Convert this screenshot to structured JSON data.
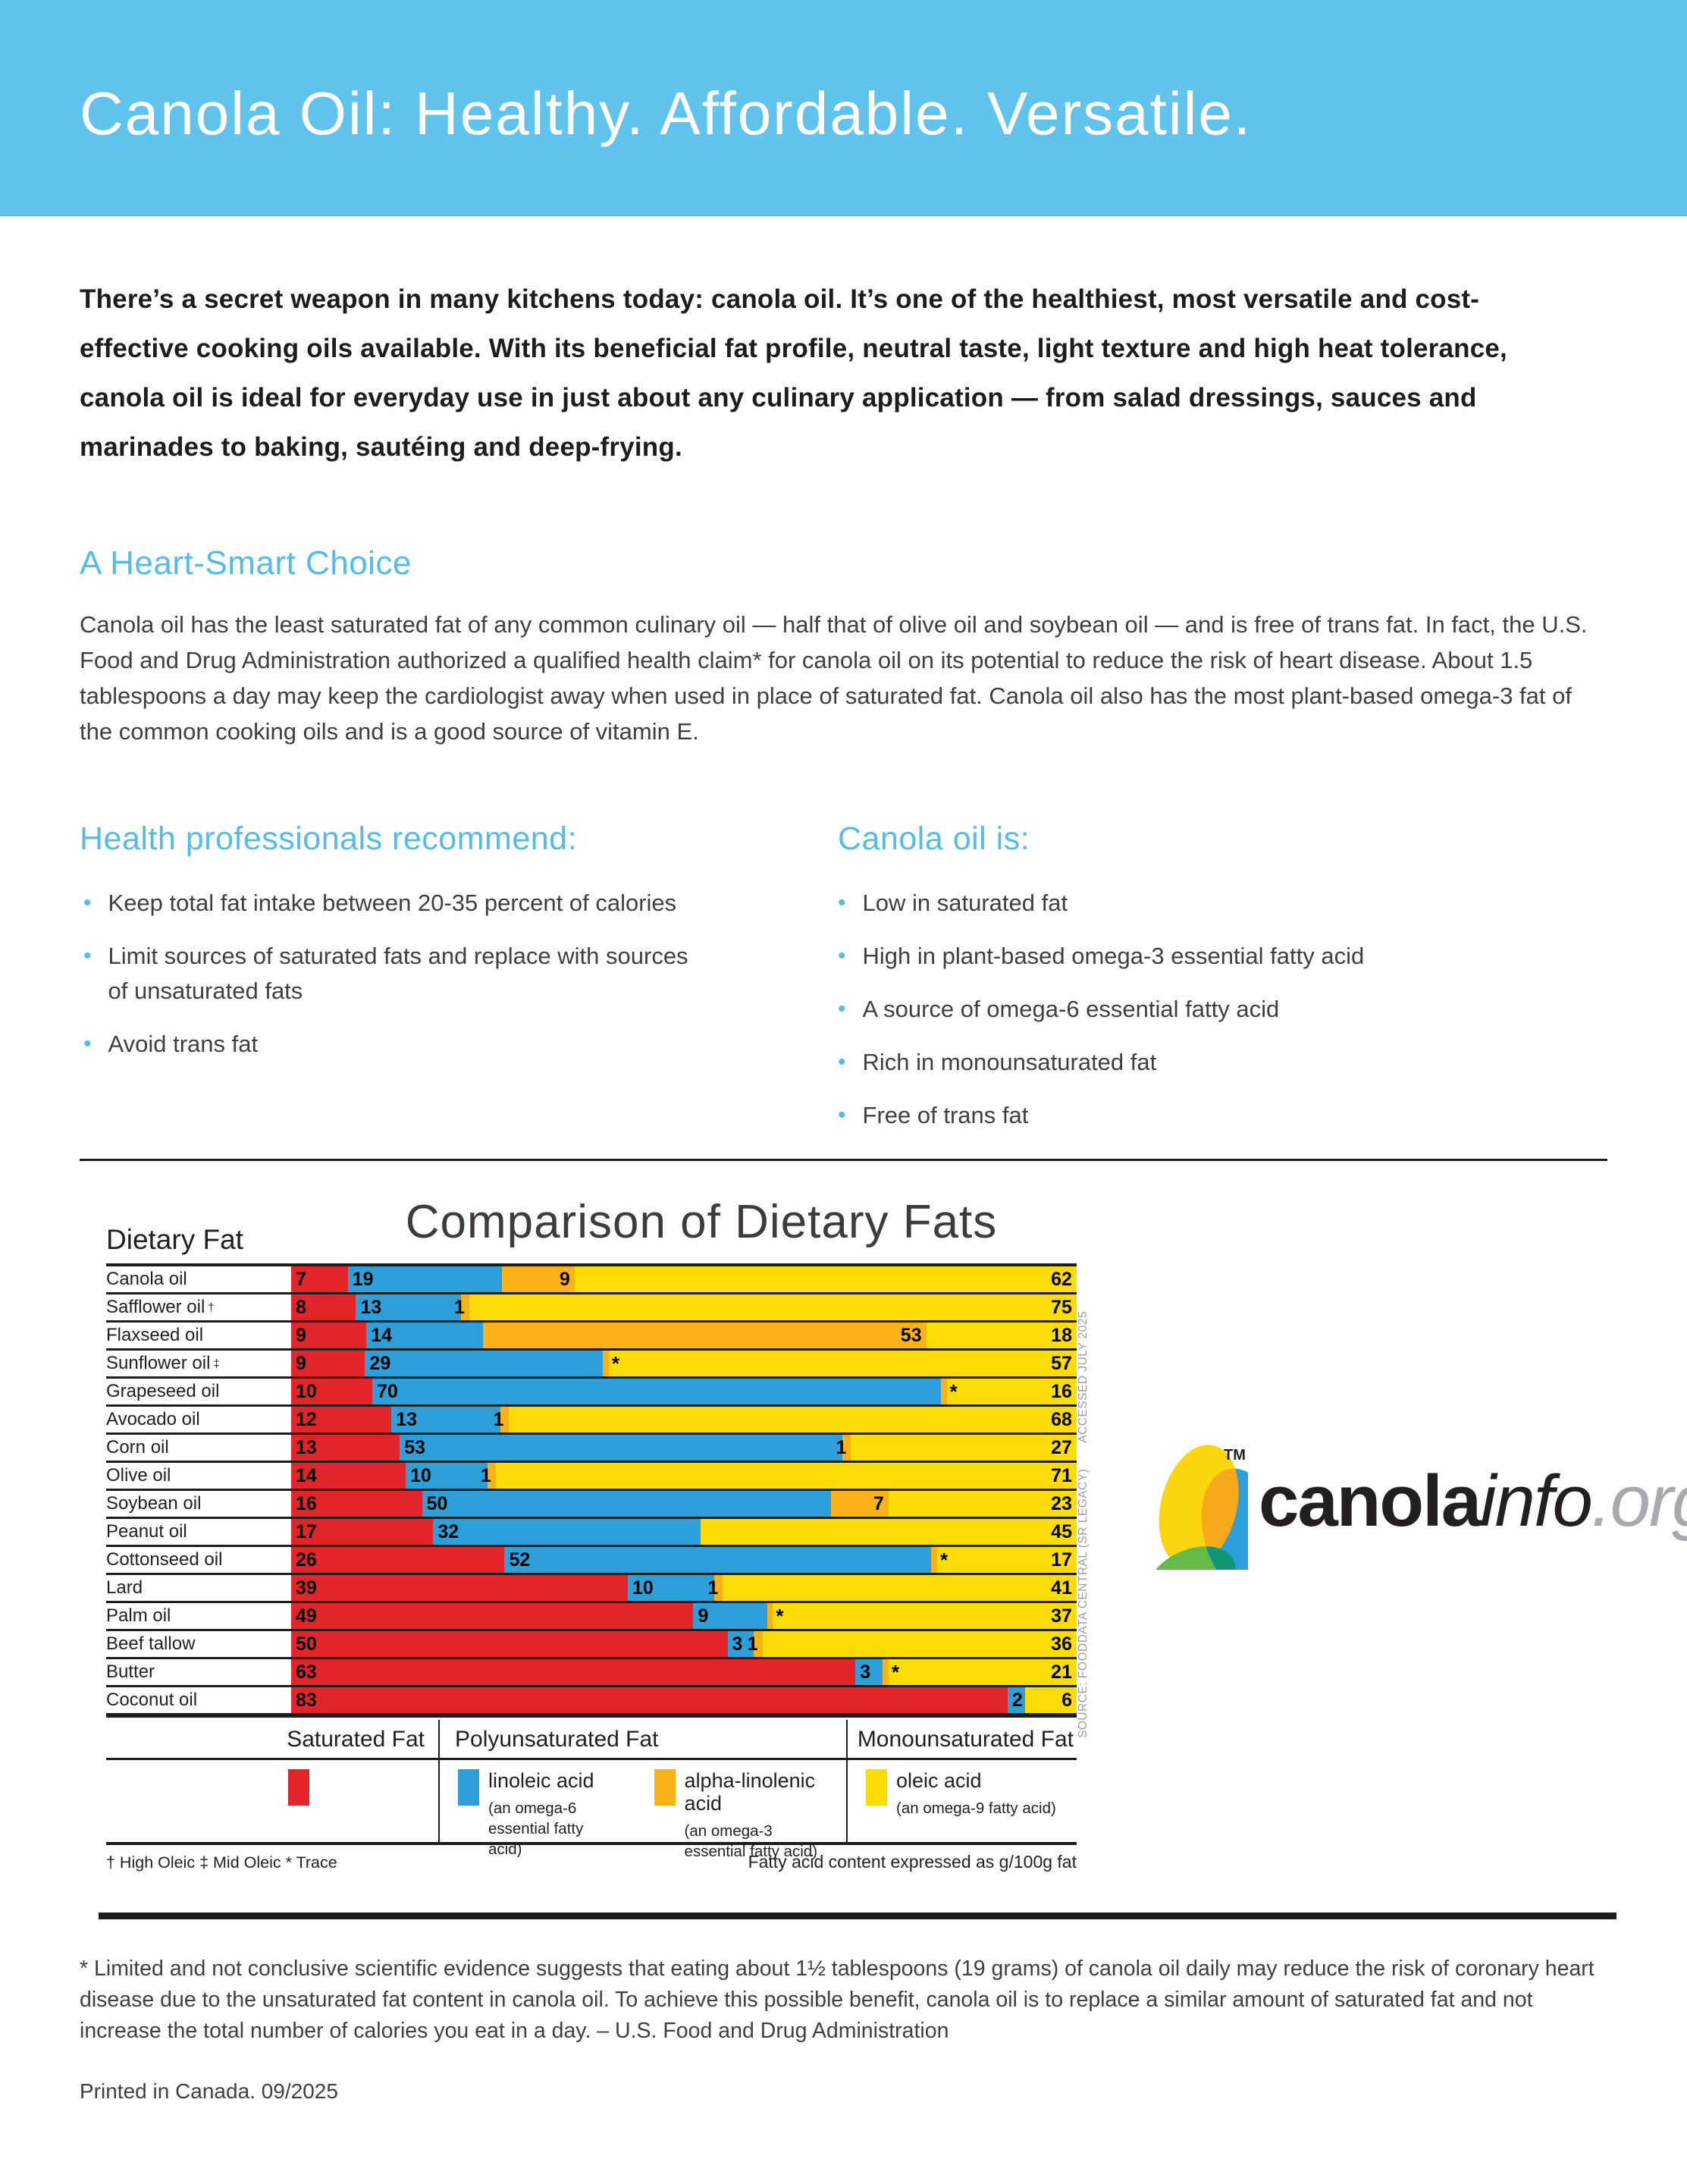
{
  "banner": {
    "title": "Canola Oil: Healthy. Affordable. Versatile.",
    "background": "#5fc3ec"
  },
  "intro": "There’s a secret weapon in many kitchens today: canola oil. It’s one of the healthiest, most versatile and cost-effective cooking oils available. With its beneficial fat profile, neutral taste, light texture and high heat tolerance, canola oil is ideal for everyday use in just about any culinary application — from salad dressings, sauces and marinades to baking, sautéing and deep-frying.",
  "heart_smart": {
    "heading": "A Heart-Smart Choice",
    "body": "Canola oil has the least saturated fat of any common culinary oil — half that of olive oil and soybean oil — and is free of trans fat. In fact, the U.S. Food and Drug Administration authorized a qualified health claim* for canola oil on its potential to reduce the risk of heart disease. About 1.5 tablespoons a day may keep the cardiologist away when used in place of saturated fat. Canola oil also has the most plant-based omega-3 fat of the common cooking oils and is a good source of vitamin E."
  },
  "recommend": {
    "heading": "Health professionals recommend:",
    "items": [
      "Keep total fat intake between 20-35 percent of calories",
      "Limit sources of saturated fats and replace with sources of unsaturated fats",
      "Avoid trans fat"
    ]
  },
  "canola_is": {
    "heading": "Canola oil is:",
    "items": [
      "Low in saturated fat",
      "High in plant-based omega-3 essential fatty acid",
      "A source of omega-6 essential fatty acid",
      "Rich in monounsaturated fat",
      "Free of trans fat"
    ]
  },
  "bullet_char": "•",
  "chart_data": {
    "type": "bar",
    "orientation": "horizontal-stacked",
    "title": "Comparison of Dietary Fats",
    "axis_label": "Dietary Fat",
    "unit_note": "Fatty acid content expressed as g/100g fat",
    "footnote_symbols": "† High Oleic   ‡ Mid Oleic   * Trace",
    "source_vertical_1": "SOURCE: FOODDATA CENTRAL (SR LEGACY)",
    "source_vertical_2": "ACCESSED JULY 2025",
    "trace_display_width": 0.7,
    "categories": [
      "Canola oil",
      "Safflower oil",
      "Flaxseed oil",
      "Sunflower oil",
      "Grapeseed oil",
      "Avocado oil",
      "Corn oil",
      "Olive oil",
      "Soybean oil",
      "Peanut oil",
      "Cottonseed oil",
      "Lard",
      "Palm oil",
      "Beef tallow",
      "Butter",
      "Coconut oil"
    ],
    "category_sups": [
      "",
      "†",
      "",
      "‡",
      "",
      "",
      "",
      "",
      "",
      "",
      "",
      "",
      "",
      "",
      "",
      ""
    ],
    "series": [
      {
        "name": "Saturated Fat",
        "color": "#e2242b",
        "values": [
          7,
          8,
          9,
          9,
          10,
          12,
          13,
          14,
          16,
          17,
          26,
          39,
          49,
          50,
          63,
          83
        ]
      },
      {
        "name": "linoleic acid",
        "color": "#2d9fd9",
        "values": [
          19,
          13,
          14,
          29,
          70,
          13,
          53,
          10,
          50,
          32,
          52,
          10,
          9,
          3,
          3,
          2
        ]
      },
      {
        "name": "alpha-linolenic acid",
        "color": "#fbb216",
        "values": [
          9,
          1,
          53,
          "*",
          "*",
          1,
          1,
          1,
          7,
          null,
          "*",
          1,
          "*",
          1,
          "*",
          null
        ]
      },
      {
        "name": "oleic acid",
        "color": "#fcdc05",
        "values": [
          62,
          75,
          18,
          57,
          16,
          68,
          27,
          71,
          23,
          45,
          17,
          41,
          37,
          36,
          21,
          6
        ]
      }
    ],
    "legend": {
      "col_saturated": {
        "header": "Saturated Fat",
        "color": "#e2242b"
      },
      "col_poly": {
        "header": "Polyunsaturated Fat",
        "entries": [
          {
            "label": "linoleic acid",
            "sublabel": "(an omega-6\nessential fatty acid)",
            "color": "#2d9fd9"
          },
          {
            "label": "alpha-linolenic acid",
            "sublabel": "(an omega-3\nessential fatty acid)",
            "color": "#fbb216"
          }
        ]
      },
      "col_mono": {
        "header": "Monounsaturated Fat",
        "entries": [
          {
            "label": "oleic acid",
            "sublabel": "(an omega-9 fatty acid)",
            "color": "#fcdc05"
          }
        ]
      }
    }
  },
  "logo": {
    "tm": "TM",
    "text_bold": "canola",
    "text_italic": "info",
    "text_gray": ".org"
  },
  "fda_footnote": "* Limited and not conclusive scientific evidence suggests that eating about 1½ tablespoons (19 grams) of canola oil daily may reduce the risk of coronary heart disease due to the unsaturated fat content in canola oil. To achieve this possible benefit, canola oil is to replace a similar amount of saturated fat and not increase the total number of calories you eat in a day. – U.S. Food and Drug Administration",
  "printed": "Printed in Canada. 09/2025"
}
